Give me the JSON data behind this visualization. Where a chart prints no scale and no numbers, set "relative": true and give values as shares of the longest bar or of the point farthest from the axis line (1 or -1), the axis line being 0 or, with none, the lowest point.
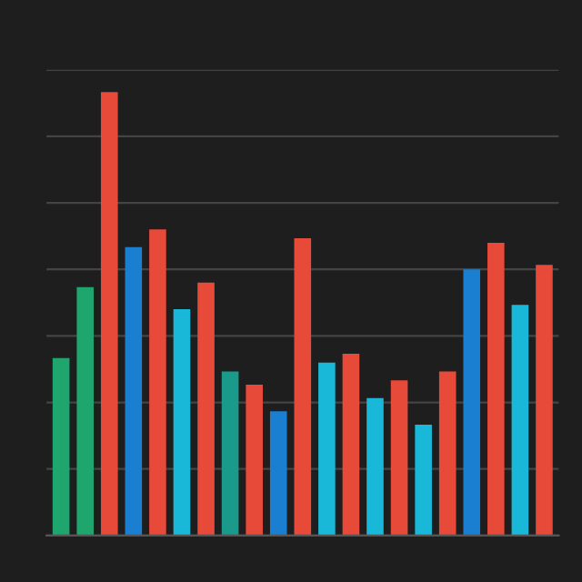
{
  "chart_data": {
    "type": "bar",
    "relative": true,
    "categories": [
      null,
      null,
      null,
      null,
      null,
      null,
      null,
      null,
      null,
      null,
      null,
      null,
      null,
      null,
      null,
      null,
      null,
      null,
      null,
      null,
      null
    ],
    "values": [
      0.4,
      0.56,
      1.0,
      0.65,
      0.69,
      0.51,
      0.57,
      0.37,
      0.34,
      0.28,
      0.67,
      0.39,
      0.41,
      0.31,
      0.35,
      0.25,
      0.37,
      0.6,
      0.66,
      0.52,
      0.61
    ],
    "colors": [
      "#1fa66e",
      "#1fa66e",
      "#e84a3a",
      "#1a7fd0",
      "#e84a3a",
      "#1ab8d8",
      "#e84a3a",
      "#1a9a8a",
      "#e84a3a",
      "#1a7fd0",
      "#e84a3a",
      "#1ab8d8",
      "#e84a3a",
      "#1ab8d8",
      "#e84a3a",
      "#1ab8d8",
      "#e84a3a",
      "#1a7fd0",
      "#e84a3a",
      "#1ab8d8",
      "#e84a3a"
    ],
    "grid": "y",
    "tick_labels": false
  }
}
